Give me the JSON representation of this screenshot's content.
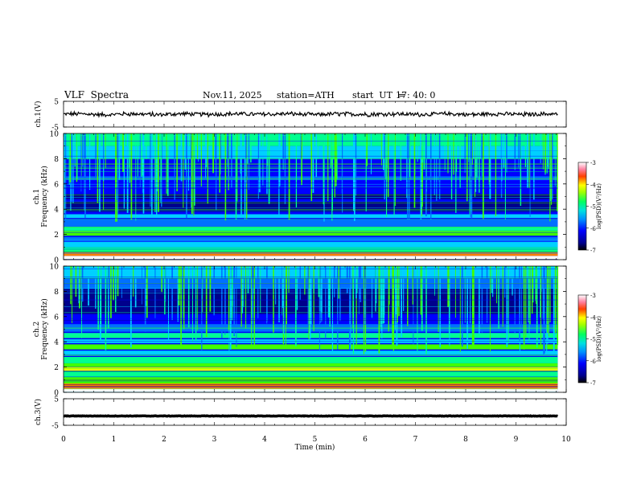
{
  "header": {
    "title": "VLF  Spectra",
    "date": "Nov.11, 2025",
    "station": "station=ATH",
    "start_ut_label": "start  UT  =",
    "start_ut_value": "17: 40: 0"
  },
  "chart_data": [
    {
      "type": "line",
      "id": "ch1-voltage",
      "ylabel": "ch.1(V)",
      "ylim": [
        -5,
        5
      ],
      "yticks": [
        "5",
        "-5"
      ],
      "x_range_min": [
        0,
        9.83
      ],
      "baseline_level_V": 0
    },
    {
      "type": "heatmap",
      "id": "ch1-spectrogram",
      "ylabel_top": "ch.1",
      "ylabel": "Frequency  (kHz)",
      "ylim": [
        0,
        10
      ],
      "yticks": [
        "0",
        "2",
        "4",
        "6",
        "8",
        "10"
      ],
      "x_range_min": [
        0,
        9.83
      ],
      "colorbar": {
        "label": "log(PSD)(V²/Hz)",
        "range": [
          -7,
          -3
        ],
        "ticks": [
          "-3",
          "-4",
          "-5",
          "-6",
          "-7"
        ]
      }
    },
    {
      "type": "heatmap",
      "id": "ch2-spectrogram",
      "ylabel_top": "ch.2",
      "ylabel": "Frequency  (kHz)",
      "ylim": [
        0,
        10
      ],
      "yticks": [
        "0",
        "2",
        "4",
        "6",
        "8",
        "10"
      ],
      "x_range_min": [
        0,
        9.83
      ],
      "colorbar": {
        "label": "log(PSD)(V²/Hz)",
        "range": [
          -7,
          -3
        ],
        "ticks": [
          "-3",
          "-4",
          "-5",
          "-6",
          "-7"
        ]
      }
    },
    {
      "type": "line",
      "id": "ch3-voltage",
      "ylabel": "ch.3(V)",
      "ylim": [
        -5,
        5
      ],
      "yticks": [
        "5",
        "-5"
      ],
      "x_range_min": [
        0,
        9.83
      ],
      "baseline_level_V": -1.5
    }
  ],
  "x_axis": {
    "label": "Time  (min)",
    "range": [
      0,
      10
    ],
    "ticks": [
      "0",
      "1",
      "2",
      "3",
      "4",
      "5",
      "6",
      "7",
      "8",
      "9",
      "10"
    ]
  },
  "colors": {
    "colormap": [
      "#00008c",
      "#0000ff",
      "#0070ff",
      "#00d0ff",
      "#00ff90",
      "#40ff00",
      "#ffff00",
      "#ff8000",
      "#ff0000",
      "#ffffff"
    ],
    "trace": "#000000"
  }
}
